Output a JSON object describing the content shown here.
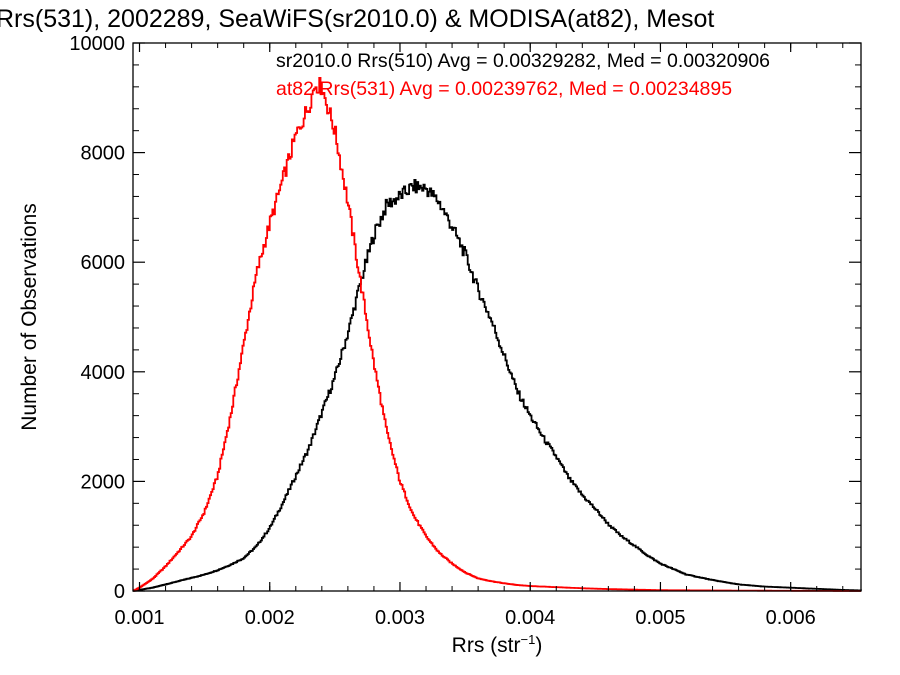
{
  "chart_data": {
    "type": "line",
    "title": "Rrs(531), 2002289, SeaWiFS(sr2010.0) & MODISA(at82), Mesot",
    "xlabel": "Rrs (str",
    "xlabel_sup": "−1",
    "xlabel_close": ")",
    "ylabel": "Number of Observations",
    "xlim": [
      0.00095,
      0.00654
    ],
    "ylim": [
      0,
      10000
    ],
    "x_ticks": [
      "0.001",
      "0.002",
      "0.003",
      "0.004",
      "0.005",
      "0.006"
    ],
    "y_ticks": [
      "0",
      "2000",
      "4000",
      "6000",
      "8000",
      "10000"
    ],
    "grid": false,
    "annotations": [
      {
        "text": "sr2010.0 Rrs(510) Avg = 0.00329282, Med = 0.00320906",
        "color": "#000000"
      },
      {
        "text": "at82 Rrs(531) Avg = 0.00239762, Med = 0.00234895",
        "color": "#ff0000"
      }
    ],
    "series": [
      {
        "color": "#000000",
        "x": [
          0.00095,
          0.0011,
          0.0012,
          0.0013,
          0.0014,
          0.0015,
          0.0016,
          0.0017,
          0.0018,
          0.0019,
          0.002,
          0.0021,
          0.0022,
          0.0023,
          0.0024,
          0.0025,
          0.0026,
          0.0027,
          0.0028,
          0.0029,
          0.003,
          0.0031,
          0.0032,
          0.0033,
          0.0034,
          0.0035,
          0.0036,
          0.0037,
          0.0038,
          0.0039,
          0.004,
          0.0041,
          0.0042,
          0.0043,
          0.0044,
          0.0045,
          0.0046,
          0.0047,
          0.0048,
          0.0049,
          0.005,
          0.0052,
          0.0054,
          0.0056,
          0.0058,
          0.006,
          0.0062,
          0.0064,
          0.00654
        ],
        "y": [
          0,
          60,
          120,
          180,
          240,
          300,
          380,
          480,
          600,
          820,
          1150,
          1600,
          2100,
          2600,
          3250,
          3900,
          4700,
          5650,
          6500,
          7050,
          7200,
          7380,
          7350,
          7100,
          6650,
          6150,
          5500,
          4950,
          4300,
          3650,
          3200,
          2800,
          2450,
          2050,
          1750,
          1500,
          1220,
          1000,
          830,
          650,
          500,
          300,
          200,
          120,
          80,
          60,
          40,
          20,
          10
        ]
      },
      {
        "color": "#ff0000",
        "x": [
          0.00095,
          0.001,
          0.0011,
          0.0012,
          0.0013,
          0.0014,
          0.0015,
          0.0016,
          0.0017,
          0.0018,
          0.0019,
          0.002,
          0.0021,
          0.0022,
          0.0023,
          0.00235,
          0.0024,
          0.0025,
          0.0026,
          0.0027,
          0.0028,
          0.0029,
          0.003,
          0.0031,
          0.0032,
          0.0033,
          0.0034,
          0.0035,
          0.0036,
          0.0037,
          0.0038,
          0.0039,
          0.004,
          0.0042,
          0.0044,
          0.0046,
          0.0048,
          0.005,
          0.0055,
          0.006,
          0.00654
        ],
        "y": [
          0,
          60,
          220,
          450,
          720,
          1000,
          1450,
          2100,
          3200,
          4500,
          5800,
          6700,
          7500,
          8300,
          8850,
          9250,
          9200,
          8400,
          7100,
          5600,
          4150,
          2900,
          2000,
          1400,
          1000,
          700,
          500,
          340,
          230,
          180,
          140,
          110,
          90,
          70,
          50,
          35,
          25,
          15,
          8,
          4,
          0
        ]
      }
    ]
  }
}
